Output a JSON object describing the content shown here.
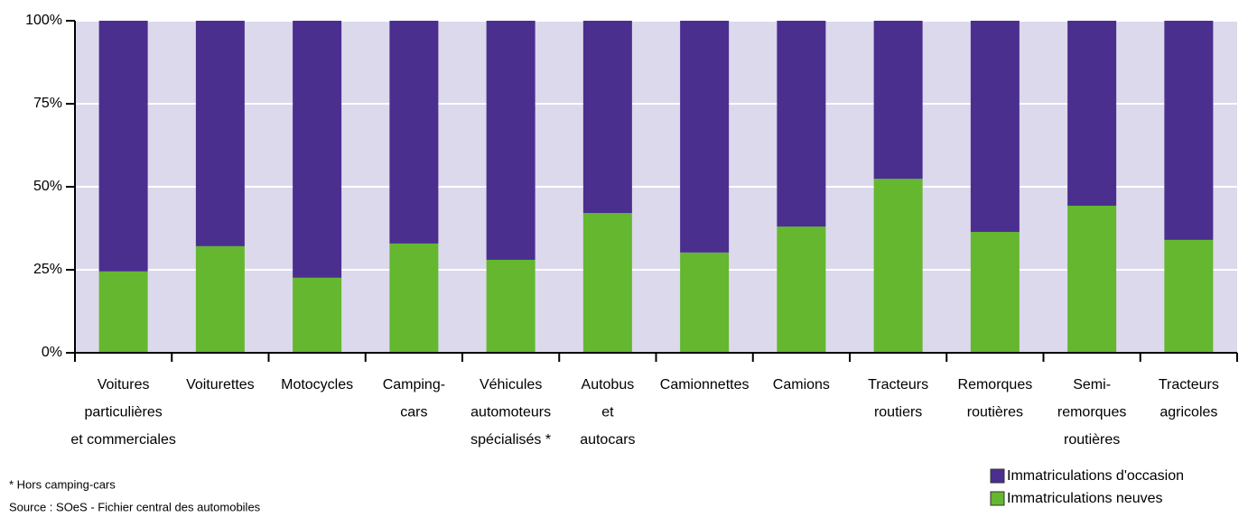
{
  "chart_data": {
    "type": "stacked_bar",
    "categories": [
      [
        "Voitures",
        "particulières",
        "et commerciales"
      ],
      [
        "Voiturettes"
      ],
      [
        "Motocycles"
      ],
      [
        "Camping-",
        "cars"
      ],
      [
        "Véhicules",
        "automoteurs",
        "spécialisés *"
      ],
      [
        "Autobus",
        "et",
        "autocars"
      ],
      [
        "Camionnettes"
      ],
      [
        "Camions"
      ],
      [
        "Tracteurs",
        "routiers"
      ],
      [
        "Remorques",
        "routières"
      ],
      [
        "Semi-",
        "remorques",
        "routières"
      ],
      [
        "Tracteurs",
        "agricoles"
      ]
    ],
    "series": [
      {
        "name": "Immatriculations d'occasion",
        "color": "#4a2f8f",
        "values": [
          75.5,
          67.9,
          77.4,
          67.1,
          72,
          57.9,
          69.8,
          62,
          47.6,
          63.6,
          55.7,
          66
        ]
      },
      {
        "name": "Immatriculations neuves",
        "color": "#64b72e",
        "values": [
          24.5,
          32.1,
          22.6,
          32.9,
          28,
          42.1,
          30.2,
          38,
          52.4,
          36.4,
          44.3,
          34
        ]
      }
    ],
    "ylim": [
      0,
      100
    ],
    "yticks": [
      {
        "value": 0,
        "label": "0%"
      },
      {
        "value": 25,
        "label": "25%"
      },
      {
        "value": 50,
        "label": "50%"
      },
      {
        "value": 75,
        "label": "75%"
      },
      {
        "value": 100,
        "label": "100%"
      }
    ],
    "grid": true,
    "background": "#dcd9ec",
    "notes": [
      "* Hors camping-cars",
      "Source : SOeS - Fichier central des automobiles"
    ]
  }
}
